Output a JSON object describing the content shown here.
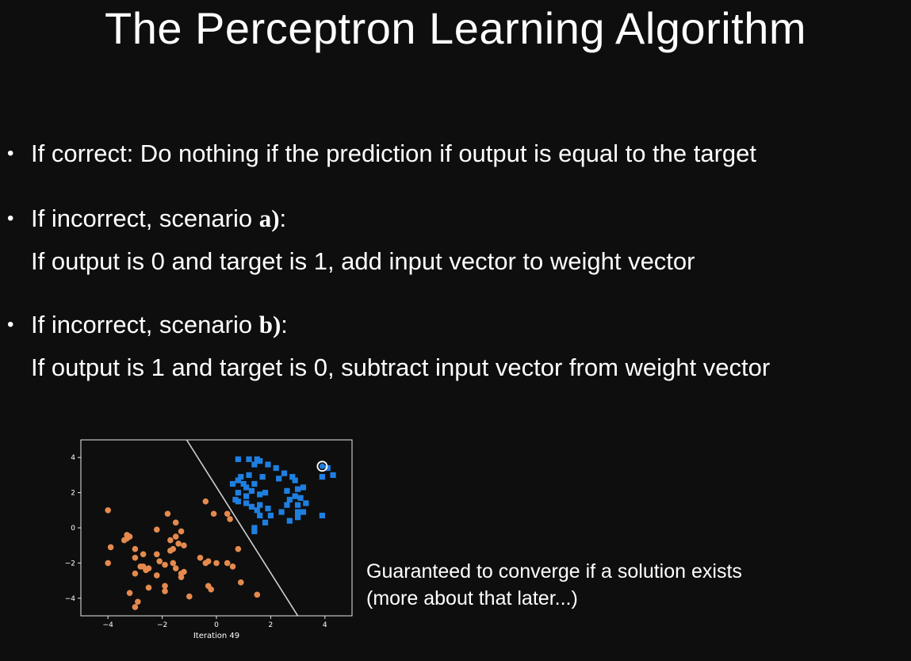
{
  "slide": {
    "title": "The Perceptron Learning Algorithm"
  },
  "bullets": [
    {
      "prefix": "If correct: Do nothing if the prediction if output is equal to the target",
      "bold": "",
      "suffix": "",
      "line2": ""
    },
    {
      "prefix": "If incorrect, scenario ",
      "bold": "a)",
      "suffix": ":",
      "line2": "If output is 0 and target is 1, add input vector to weight vector"
    },
    {
      "prefix": "If incorrect, scenario ",
      "bold": "b)",
      "suffix": ":",
      "line2": "If output is 1 and target is 0, subtract input vector from weight vector"
    }
  ],
  "caption": {
    "line1": "Guaranteed to converge if a solution exists",
    "line2": "(more about that later...)"
  },
  "chart_data": {
    "type": "scatter",
    "title": "",
    "xlabel": "Iteration 49",
    "ylabel": "",
    "xlim": [
      -5,
      5
    ],
    "ylim": [
      -5,
      5
    ],
    "x_ticks": [
      "−4",
      "−2",
      "0",
      "2",
      "4"
    ],
    "y_ticks": [
      "4",
      "2",
      "0",
      "−2",
      "−4"
    ],
    "x_tick_values": [
      -4,
      -2,
      0,
      2,
      4
    ],
    "y_tick_values": [
      4,
      2,
      0,
      -2,
      -4
    ],
    "grid": false,
    "background": "#0e0e0e",
    "decision_boundary": {
      "x1": -1.1,
      "y1": 5.0,
      "x2": 3.0,
      "y2": -5.0,
      "color": "#d0d0d0"
    },
    "highlighted_point": {
      "x": 3.9,
      "y": 3.5
    },
    "series": [
      {
        "marker": "circle",
        "color": "#e58a4e",
        "points": [
          [
            -4.0,
            1.0
          ],
          [
            -3.9,
            -1.1
          ],
          [
            -4.0,
            -2.0
          ],
          [
            -3.4,
            -0.7
          ],
          [
            -3.3,
            -0.6
          ],
          [
            -3.2,
            -0.5
          ],
          [
            -3.3,
            -0.4
          ],
          [
            -3.0,
            -1.2
          ],
          [
            -3.0,
            -1.7
          ],
          [
            -3.0,
            -2.6
          ],
          [
            -2.8,
            -2.2
          ],
          [
            -2.7,
            -2.2
          ],
          [
            -2.6,
            -2.4
          ],
          [
            -2.5,
            -2.3
          ],
          [
            -2.5,
            -3.4
          ],
          [
            -3.2,
            -3.7
          ],
          [
            -2.9,
            -4.2
          ],
          [
            -3.0,
            -4.5
          ],
          [
            -2.7,
            -1.5
          ],
          [
            -2.2,
            -0.1
          ],
          [
            -2.2,
            -1.5
          ],
          [
            -2.1,
            -1.9
          ],
          [
            -2.2,
            -2.7
          ],
          [
            -1.9,
            -2.1
          ],
          [
            -1.9,
            -3.6
          ],
          [
            -1.9,
            -3.3
          ],
          [
            -1.8,
            0.8
          ],
          [
            -1.7,
            -0.7
          ],
          [
            -1.7,
            -1.3
          ],
          [
            -1.6,
            -1.2
          ],
          [
            -1.5,
            -0.5
          ],
          [
            -1.6,
            -2.0
          ],
          [
            -1.5,
            -2.3
          ],
          [
            -1.5,
            0.3
          ],
          [
            -1.4,
            -0.9
          ],
          [
            -1.3,
            -0.2
          ],
          [
            -1.3,
            -2.6
          ],
          [
            -1.3,
            -2.8
          ],
          [
            -1.2,
            -1.0
          ],
          [
            -1.2,
            -2.5
          ],
          [
            -1.0,
            -3.9
          ],
          [
            -0.6,
            -1.7
          ],
          [
            -0.3,
            -1.9
          ],
          [
            -0.4,
            -2.0
          ],
          [
            -0.3,
            -3.3
          ],
          [
            -0.2,
            -3.5
          ],
          [
            -0.1,
            0.8
          ],
          [
            -0.4,
            1.5
          ],
          [
            0.0,
            -2.0
          ],
          [
            0.4,
            -2.0
          ],
          [
            0.5,
            0.5
          ],
          [
            0.8,
            -1.2
          ],
          [
            0.6,
            -2.2
          ],
          [
            0.9,
            -3.1
          ],
          [
            0.4,
            0.8
          ],
          [
            1.5,
            -3.8
          ]
        ]
      },
      {
        "marker": "square",
        "color": "#1f7fe0",
        "points": [
          [
            0.8,
            3.9
          ],
          [
            0.6,
            2.5
          ],
          [
            0.8,
            2.7
          ],
          [
            0.8,
            2.0
          ],
          [
            0.7,
            1.6
          ],
          [
            0.8,
            1.5
          ],
          [
            0.9,
            2.9
          ],
          [
            1.0,
            2.5
          ],
          [
            1.1,
            2.3
          ],
          [
            1.1,
            1.4
          ],
          [
            1.1,
            1.8
          ],
          [
            1.2,
            3.9
          ],
          [
            1.2,
            3.0
          ],
          [
            1.3,
            1.2
          ],
          [
            1.3,
            2.1
          ],
          [
            1.4,
            2.5
          ],
          [
            1.4,
            3.6
          ],
          [
            1.5,
            3.9
          ],
          [
            1.6,
            3.8
          ],
          [
            1.5,
            1.0
          ],
          [
            1.6,
            1.9
          ],
          [
            1.7,
            2.9
          ],
          [
            1.8,
            2.0
          ],
          [
            1.6,
            1.3
          ],
          [
            1.9,
            3.6
          ],
          [
            1.9,
            1.1
          ],
          [
            1.6,
            0.7
          ],
          [
            1.8,
            0.3
          ],
          [
            1.4,
            0.0
          ],
          [
            1.4,
            -0.2
          ],
          [
            2.0,
            0.7
          ],
          [
            2.2,
            3.4
          ],
          [
            2.3,
            2.8
          ],
          [
            2.4,
            0.9
          ],
          [
            2.5,
            3.1
          ],
          [
            2.6,
            1.3
          ],
          [
            2.6,
            2.1
          ],
          [
            2.7,
            1.6
          ],
          [
            2.7,
            0.4
          ],
          [
            2.8,
            2.9
          ],
          [
            2.9,
            1.8
          ],
          [
            2.9,
            2.7
          ],
          [
            3.0,
            1.3
          ],
          [
            3.0,
            2.2
          ],
          [
            3.0,
            0.9
          ],
          [
            3.1,
            1.7
          ],
          [
            3.2,
            2.3
          ],
          [
            3.2,
            0.9
          ],
          [
            3.0,
            0.6
          ],
          [
            3.3,
            1.4
          ],
          [
            3.9,
            2.9
          ],
          [
            3.9,
            0.7
          ],
          [
            4.1,
            3.4
          ],
          [
            4.3,
            3.0
          ]
        ]
      }
    ]
  }
}
